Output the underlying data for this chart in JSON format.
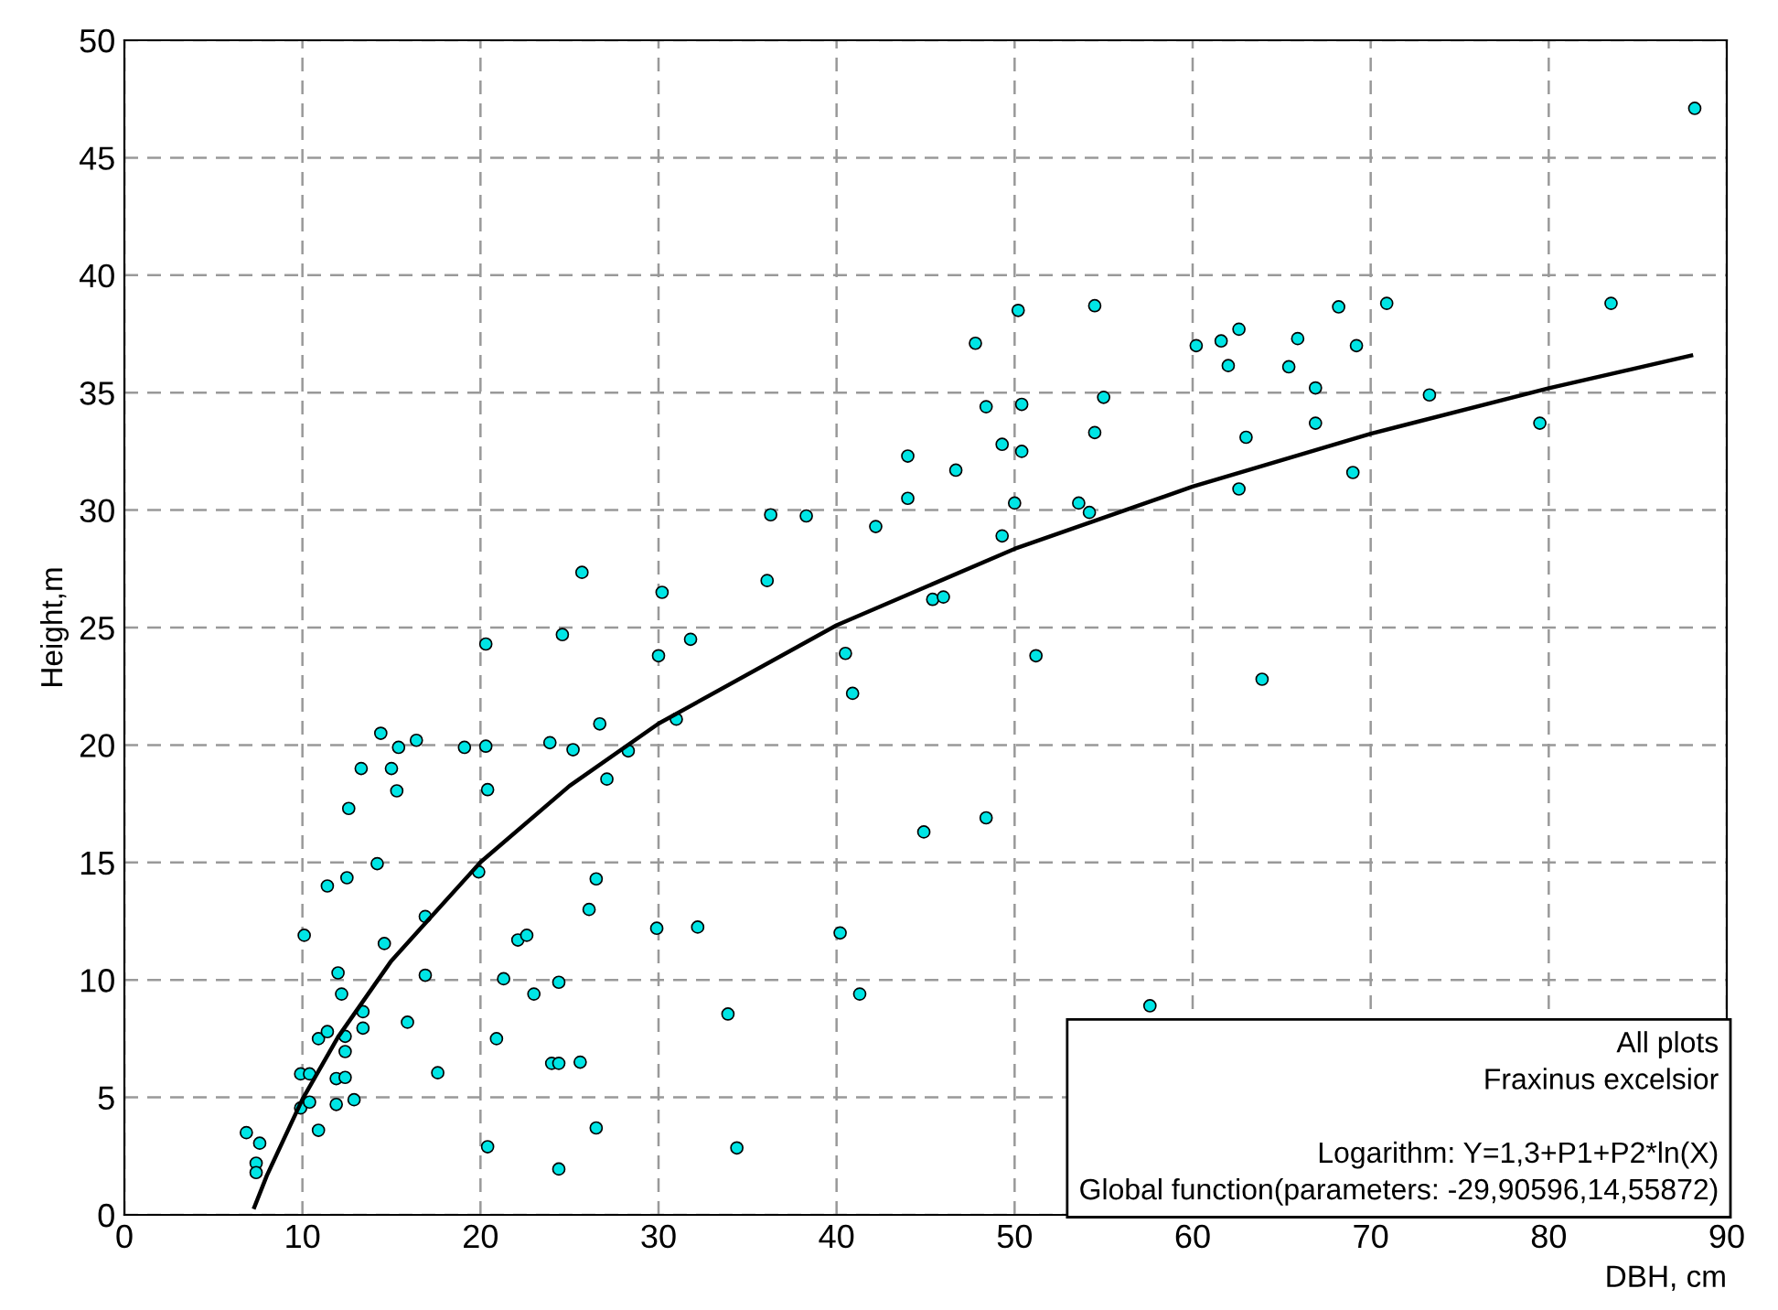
{
  "chart_data": {
    "type": "scatter",
    "xlabel": "DBH, cm",
    "ylabel": "Height,m",
    "xlim": [
      0,
      90
    ],
    "ylim": [
      0,
      50
    ],
    "xticks": [
      0,
      10,
      20,
      30,
      40,
      50,
      60,
      70,
      80,
      90
    ],
    "yticks": [
      0,
      5,
      10,
      15,
      20,
      25,
      30,
      35,
      40,
      45,
      50
    ],
    "grid": true,
    "legend": false,
    "annotations": [
      "All plots",
      "Fraxinus excelsior",
      "Logarithm: Y=1,3+P1+P2*ln(X)",
      "Global function(parameters: -29,90596,14,55872)"
    ],
    "series": [
      {
        "color": "#00e5e5",
        "marker": "circle",
        "x": [
          6.85,
          7.6,
          7.4,
          7.4,
          10.1,
          9.9,
          10.4,
          9.9,
          10.4,
          10.9,
          10.9,
          11.4,
          11.4,
          12.0,
          12.2,
          11.9,
          12.4,
          12.4,
          12.4,
          11.9,
          12.9,
          12.5,
          12.6,
          13.3,
          13.4,
          13.4,
          14.2,
          14.4,
          14.6,
          15.0,
          15.3,
          15.4,
          15.9,
          16.4,
          16.9,
          16.9,
          17.6,
          19.1,
          19.9,
          20.3,
          20.4,
          20.4,
          20.9,
          21.3,
          22.1,
          22.6,
          23.0,
          23.9,
          24.0,
          24.4,
          24.4,
          24.4,
          25.2,
          25.6,
          26.1,
          26.5,
          26.5,
          26.7,
          27.1,
          28.3,
          20.3,
          24.6,
          25.7,
          29.9,
          32.2,
          33.9,
          34.4,
          30.0,
          30.2,
          31.8,
          31.0,
          36.3,
          38.3,
          36.1,
          50.2,
          47.8,
          48.4,
          50.4,
          49.3,
          50.4,
          44.0,
          46.7,
          44.0,
          50.0,
          53.6,
          42.2,
          49.3,
          45.4,
          46.0,
          40.5,
          40.9,
          51.2,
          88.2,
          54.5,
          83.5,
          70.9,
          68.2,
          60.2,
          61.6,
          62.6,
          65.9,
          69.2,
          62.0,
          65.4,
          66.9,
          55.0,
          54.5,
          63.0,
          66.9,
          73.3,
          79.5,
          54.2,
          62.6,
          69.0,
          63.9,
          57.6,
          44.9,
          48.4,
          40.2,
          41.3
        ],
        "values": [
          3.5,
          3.05,
          2.2,
          1.8,
          11.9,
          6.0,
          6.0,
          4.55,
          4.8,
          3.6,
          7.5,
          7.8,
          14.0,
          10.3,
          9.4,
          5.8,
          5.85,
          7.6,
          6.95,
          4.7,
          4.9,
          14.35,
          17.3,
          19.0,
          8.65,
          7.95,
          14.95,
          20.5,
          11.55,
          19.0,
          18.05,
          19.9,
          8.2,
          20.2,
          12.7,
          10.2,
          6.05,
          19.9,
          14.6,
          19.95,
          18.1,
          2.9,
          7.5,
          10.05,
          11.7,
          11.9,
          9.4,
          20.1,
          6.45,
          6.45,
          9.9,
          1.95,
          19.8,
          6.5,
          13.0,
          14.3,
          3.7,
          20.9,
          18.55,
          19.75,
          24.3,
          24.7,
          27.35,
          12.2,
          12.25,
          8.55,
          2.85,
          23.8,
          26.5,
          24.5,
          21.1,
          29.8,
          29.75,
          27.0,
          38.5,
          37.1,
          34.4,
          34.5,
          32.8,
          32.5,
          32.3,
          31.7,
          30.5,
          30.3,
          30.3,
          29.3,
          28.9,
          26.2,
          26.3,
          23.9,
          22.2,
          23.8,
          47.1,
          38.7,
          38.8,
          38.8,
          38.65,
          37.0,
          37.2,
          37.7,
          37.3,
          37.0,
          36.15,
          36.1,
          35.2,
          34.8,
          33.3,
          33.1,
          33.7,
          34.9,
          33.7,
          29.9,
          30.9,
          31.6,
          22.8,
          8.9,
          16.3,
          16.9,
          12.0,
          9.4
        ]
      },
      {
        "type": "line",
        "color": "#000000",
        "marker": "none",
        "line_style": "solid",
        "x": [
          7.3,
          8,
          10,
          12,
          15,
          20,
          25,
          30,
          40,
          50,
          60,
          70,
          80,
          88
        ],
        "values": [
          0.33,
          1.67,
          4.92,
          7.57,
          10.82,
          15.01,
          18.26,
          20.91,
          25.1,
          28.35,
          31.0,
          33.25,
          35.19,
          36.58
        ]
      }
    ]
  }
}
